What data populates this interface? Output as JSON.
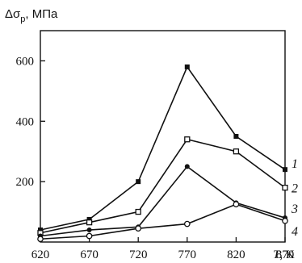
{
  "chart_data": {
    "type": "line",
    "ylabel_prefix": "Δσ",
    "ylabel_sub": "р",
    "ylabel_unit": ", МПа",
    "xlabel_var": "T",
    "xlabel_unit": ", K",
    "x": [
      620,
      670,
      720,
      770,
      820,
      870
    ],
    "xlim": [
      620,
      870
    ],
    "ylim": [
      0,
      700
    ],
    "yticks": [
      200,
      400,
      600
    ],
    "grid": false,
    "series": [
      {
        "name": "1",
        "values": [
          40,
          75,
          200,
          580,
          350,
          240
        ],
        "marker": "square"
      },
      {
        "name": "2",
        "values": [
          30,
          65,
          100,
          340,
          300,
          180
        ],
        "marker": "square-open"
      },
      {
        "name": "3",
        "values": [
          20,
          40,
          50,
          250,
          130,
          80
        ],
        "marker": "dot"
      },
      {
        "name": "4",
        "values": [
          10,
          20,
          45,
          60,
          125,
          70
        ],
        "marker": "dot-open"
      }
    ]
  }
}
